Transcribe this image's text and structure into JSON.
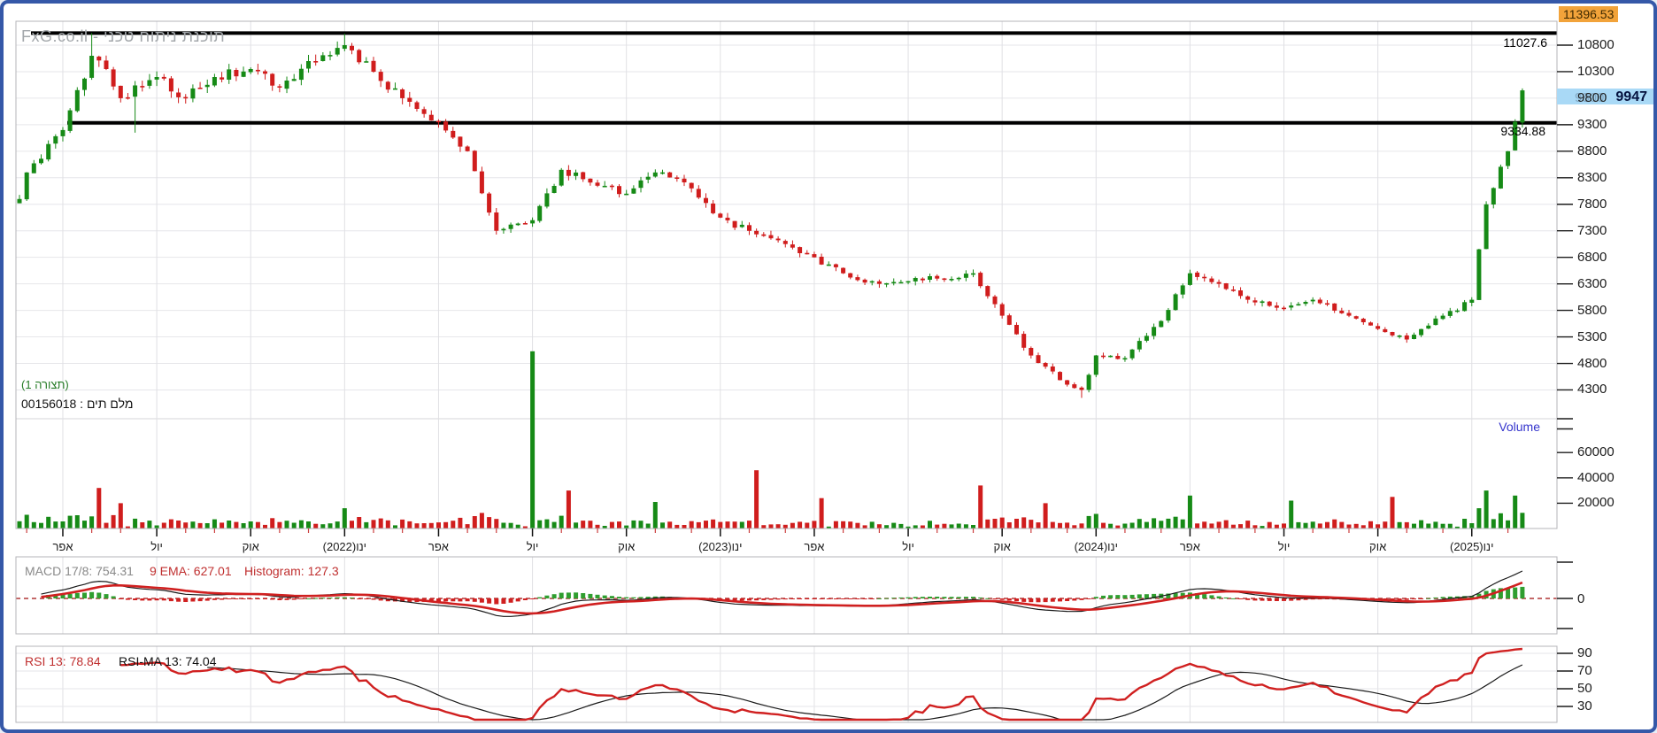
{
  "app": {
    "watermark": "FxG.co.il - תוכנת ניתוח טכני",
    "accent_border_color": "#3558a8"
  },
  "annotations": {
    "config_label": "(תצורה 1)",
    "symbol_label": "מלם תים : 00156018"
  },
  "price_axis": {
    "ticks": [
      10800,
      10300,
      9800,
      9300,
      8800,
      8300,
      7800,
      7300,
      6800,
      6300,
      5800,
      5300,
      4800,
      4300
    ],
    "ath_badge": "11396.53",
    "last_badge": {
      "tick": "9800",
      "price": "9947"
    }
  },
  "levels": {
    "resistance": {
      "label": "11027.6",
      "value": 11027.6
    },
    "support": {
      "label": "9334.88",
      "value": 9334.88
    }
  },
  "volume_axis": {
    "label": "Volume",
    "ticks": [
      60000,
      40000,
      20000
    ]
  },
  "x_axis": {
    "labels": [
      "אפר",
      "יול",
      "אוק",
      "ינו(2022)",
      "אפר",
      "יול",
      "אוק",
      "ינו(2023)",
      "אפר",
      "יול",
      "אוק",
      "ינו(2024)",
      "אפר",
      "יול",
      "אוק",
      "ינו(2025)"
    ]
  },
  "macd_panel": {
    "title_macd": "MACD 17/8: 754.31",
    "title_signal": "9 EMA: 627.01",
    "title_hist": "Histogram: 127.3",
    "zero_label": "0",
    "params": {
      "fast": 8,
      "slow": 17,
      "signal": 9
    },
    "current": {
      "macd": 754.31,
      "signal": 627.01,
      "histogram": 127.3
    }
  },
  "rsi_panel": {
    "title_rsi": "RSI 13: 78.84",
    "title_ma": "RSI-MA 13: 74.04",
    "ticks": [
      90,
      70,
      50,
      30
    ],
    "period": 13,
    "current": {
      "rsi": 78.84,
      "rsi_ma": 74.04
    }
  },
  "chart_data": {
    "type": "candlestick",
    "symbol": "מלם תים : 00156018",
    "timeframe": "weekly",
    "span": "2021-02 to 2025-02",
    "last_price": 9947,
    "all_time_high": 11396.53,
    "ylim": [
      3900,
      11300
    ],
    "y_ticks": [
      10800,
      10300,
      9800,
      9300,
      8800,
      8300,
      7800,
      7300,
      6800,
      6300,
      5800,
      5300,
      4800,
      4300
    ],
    "volume_ticks": [
      20000,
      40000,
      60000
    ],
    "grid": true,
    "legend_position": "none",
    "horizontal_lines": [
      11027.6,
      9334.88
    ],
    "monthly_close_anchors": [
      [
        "2021-02",
        7900
      ],
      [
        "2021-03",
        8400
      ],
      [
        "2021-04",
        9200
      ],
      [
        "2021-05",
        10600
      ],
      [
        "2021-05b",
        10350
      ],
      [
        "2021-06",
        9800
      ],
      [
        "2021-07",
        10200
      ],
      [
        "2021-08",
        9800
      ],
      [
        "2021-09",
        10200
      ],
      [
        "2021-10",
        10350
      ],
      [
        "2021-11",
        10000
      ],
      [
        "2021-12",
        10500
      ],
      [
        "2022-01",
        10800
      ],
      [
        "2022-02",
        10300
      ],
      [
        "2022-03",
        9800
      ],
      [
        "2022-04",
        9350
      ],
      [
        "2022-05",
        8800
      ],
      [
        "2022-06",
        7300
      ],
      [
        "2022-07",
        7500
      ],
      [
        "2022-08",
        8450
      ],
      [
        "2022-09",
        8150
      ],
      [
        "2022-10",
        8000
      ],
      [
        "2022-11",
        8400
      ],
      [
        "2022-12",
        8100
      ],
      [
        "2023-01",
        7550
      ],
      [
        "2023-02",
        7300
      ],
      [
        "2023-03",
        7050
      ],
      [
        "2023-04",
        6800
      ],
      [
        "2023-05",
        6500
      ],
      [
        "2023-06",
        6300
      ],
      [
        "2023-07",
        6350
      ],
      [
        "2023-08",
        6400
      ],
      [
        "2023-09",
        6500
      ],
      [
        "2023-10",
        5700
      ],
      [
        "2023-11",
        4950
      ],
      [
        "2023-12",
        4400
      ],
      [
        "2023-12b",
        4300
      ],
      [
        "2024-01",
        4950
      ],
      [
        "2024-02",
        4900
      ],
      [
        "2024-03",
        5600
      ],
      [
        "2024-04",
        6500
      ],
      [
        "2024-05",
        6300
      ],
      [
        "2024-06",
        5950
      ],
      [
        "2024-07",
        5850
      ],
      [
        "2024-08",
        6000
      ],
      [
        "2024-09",
        5700
      ],
      [
        "2024-10",
        5450
      ],
      [
        "2024-11",
        5250
      ],
      [
        "2024-12",
        5700
      ],
      [
        "2025-01",
        6000
      ],
      [
        "2025-01b",
        7800
      ],
      [
        "2025-02",
        8800
      ],
      [
        "2025-02b",
        9947
      ]
    ],
    "week_overrides": [
      [
        "2025-02",
        1,
        9355
      ]
    ],
    "extremes": [
      [
        "2021-05",
        0,
        "high",
        11027.6
      ],
      [
        "2021-06",
        2,
        "low",
        9150
      ],
      [
        "2022-01",
        0,
        "high",
        11015
      ],
      [
        "2023-12b",
        0,
        "low",
        4150
      ],
      [
        "2025-02b",
        0,
        "high",
        9985
      ]
    ],
    "volume_spikes": [
      [
        "2021-05",
        1,
        32000,
        "red"
      ],
      [
        "2021-06",
        0,
        20000,
        "red"
      ],
      [
        "2022-01",
        0,
        16000,
        "green"
      ],
      [
        "2022-07",
        0,
        140000,
        "green"
      ],
      [
        "2022-08",
        1,
        30000,
        "green"
      ],
      [
        "2022-11",
        0,
        21000,
        "red"
      ],
      [
        "2023-02",
        1,
        46000,
        "green"
      ],
      [
        "2023-04",
        1,
        24000,
        "red"
      ],
      [
        "2023-09",
        1,
        34000,
        "green"
      ],
      [
        "2023-11",
        2,
        20000,
        "red"
      ],
      [
        "2024-04",
        0,
        26000,
        "green"
      ],
      [
        "2024-07",
        1,
        22000,
        "green"
      ],
      [
        "2024-10",
        2,
        25000,
        "red"
      ],
      [
        "2025-01",
        2,
        30000,
        "green"
      ],
      [
        "2025-02",
        1,
        26000,
        "green"
      ]
    ],
    "colors": {
      "up": "#168a16",
      "down": "#d01d1d",
      "macd_line": "#1a1a1a",
      "macd_signal": "#d02020",
      "hist_up": "#2f9e2f",
      "hist_down": "#d02020",
      "rsi_line": "#d02020",
      "rsi_ma": "#1a1a1a",
      "level_line": "#000000",
      "ath_badge_bg": "#f2a33a",
      "last_badge_bg": "#a9d9f6"
    }
  }
}
